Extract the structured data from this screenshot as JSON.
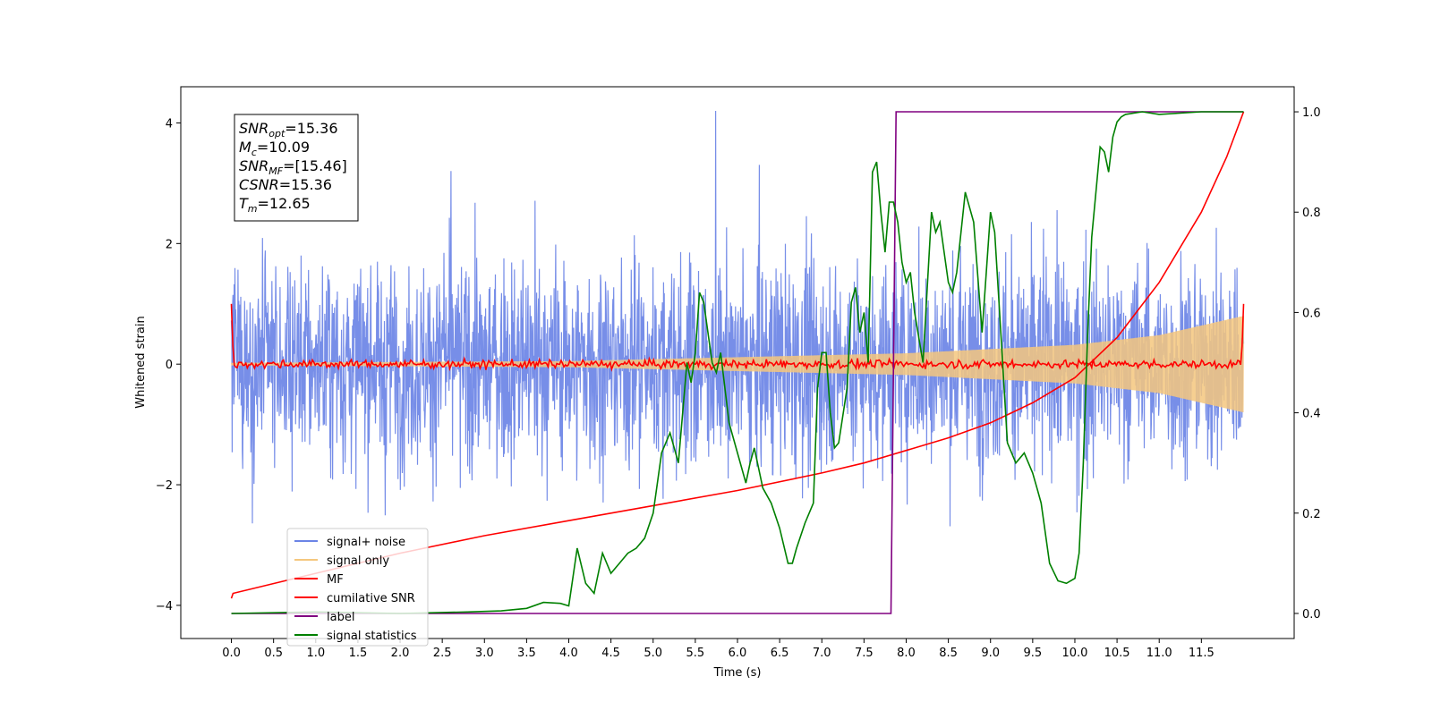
{
  "chart_data": {
    "type": "line",
    "xlabel": "Time (s)",
    "ylabel": "Whitened strain",
    "xlim": [
      -0.6,
      12.6
    ],
    "ylim": [
      -4.55,
      4.6
    ],
    "y2lim": [
      -0.05,
      1.05
    ],
    "xticks": [
      0.0,
      0.5,
      1.0,
      1.5,
      2.0,
      2.5,
      3.0,
      3.5,
      4.0,
      4.5,
      5.0,
      5.5,
      6.0,
      6.5,
      7.0,
      7.5,
      8.0,
      8.5,
      9.0,
      9.5,
      10.0,
      10.5,
      11.0,
      11.5
    ],
    "xtick_labels": [
      "0.0",
      "0.5",
      "1.0",
      "1.5",
      "2.0",
      "2.5",
      "3.0",
      "3.5",
      "4.0",
      "4.5",
      "5.0",
      "5.5",
      "6.0",
      "6.5",
      "7.0",
      "7.5",
      "8.0",
      "8.5",
      "9.0",
      "9.5",
      "10.0",
      "10.5",
      "11.0",
      "11.5"
    ],
    "yticks": [
      -4,
      -2,
      0,
      2,
      4
    ],
    "ytick_labels": [
      "−4",
      "−2",
      "0",
      "2",
      "4"
    ],
    "y2ticks": [
      0.0,
      0.2,
      0.4,
      0.6,
      0.8,
      1.0
    ],
    "y2tick_labels": [
      "0.0",
      "0.2",
      "0.4",
      "0.6",
      "0.8",
      "1.0"
    ],
    "grid": false,
    "legend_position": "lower-left",
    "info_box": {
      "lines": [
        {
          "base": "SNR",
          "sub": "opt",
          "value": "=15.36"
        },
        {
          "base": "M",
          "sub": "c",
          "value": "=10.09"
        },
        {
          "base": "SNR",
          "sub": "MF",
          "value": "=[15.46]"
        },
        {
          "base": "CSNR",
          "sub": "",
          "value": "=15.36"
        },
        {
          "base": "T",
          "sub": "m",
          "value": "=12.65"
        }
      ]
    },
    "series": [
      {
        "name": "signal+ noise",
        "color": "#6b84e6",
        "axis": "left",
        "kind": "noise",
        "x_range": [
          0.0,
          12.0
        ],
        "amplitude_typical": 1.2,
        "amplitude_max": 4.2
      },
      {
        "name": "signal only",
        "color": "#f5c77e",
        "axis": "left",
        "kind": "chirp",
        "x_range": [
          0.0,
          12.0
        ],
        "envelope": [
          [
            0.0,
            0.02
          ],
          [
            4.0,
            0.05
          ],
          [
            8.0,
            0.18
          ],
          [
            10.0,
            0.32
          ],
          [
            11.0,
            0.48
          ],
          [
            12.0,
            0.8
          ]
        ]
      },
      {
        "name": "MF",
        "color": "#ff0000",
        "axis": "left",
        "kind": "matched-filter",
        "x_range": [
          0.0,
          12.0
        ],
        "edges": [
          [
            0.0,
            1.0
          ],
          [
            12.0,
            1.0
          ]
        ],
        "noise_amplitude": 0.08
      },
      {
        "name": "cumilative SNR",
        "color": "#ff0000",
        "axis": "right",
        "x": [
          0.0,
          0.02,
          1.0,
          2.0,
          3.0,
          4.0,
          5.0,
          6.0,
          7.0,
          7.5,
          8.0,
          8.5,
          9.0,
          9.5,
          10.0,
          10.5,
          11.0,
          11.5,
          11.8,
          12.0
        ],
        "values": [
          0.03,
          0.04,
          0.08,
          0.12,
          0.155,
          0.185,
          0.215,
          0.245,
          0.28,
          0.3,
          0.325,
          0.35,
          0.38,
          0.42,
          0.47,
          0.55,
          0.66,
          0.8,
          0.91,
          1.0
        ]
      },
      {
        "name": "label",
        "color": "#800080",
        "axis": "right",
        "x": [
          0.0,
          7.82,
          7.82,
          7.88,
          7.88,
          12.0
        ],
        "values": [
          0.0,
          0.0,
          0.0,
          1.0,
          1.0,
          1.0
        ]
      },
      {
        "name": "signal statistics",
        "color": "#008000",
        "axis": "right",
        "x": [
          0.0,
          1.0,
          2.0,
          2.8,
          3.2,
          3.5,
          3.7,
          3.9,
          4.0,
          4.1,
          4.2,
          4.3,
          4.4,
          4.5,
          4.6,
          4.7,
          4.8,
          4.9,
          5.0,
          5.1,
          5.2,
          5.3,
          5.4,
          5.45,
          5.5,
          5.55,
          5.6,
          5.7,
          5.75,
          5.8,
          5.9,
          6.0,
          6.1,
          6.15,
          6.2,
          6.3,
          6.4,
          6.5,
          6.6,
          6.65,
          6.7,
          6.8,
          6.9,
          6.95,
          7.0,
          7.05,
          7.1,
          7.15,
          7.2,
          7.3,
          7.35,
          7.4,
          7.45,
          7.5,
          7.55,
          7.6,
          7.65,
          7.7,
          7.75,
          7.8,
          7.85,
          7.9,
          7.95,
          8.0,
          8.05,
          8.1,
          8.2,
          8.3,
          8.35,
          8.4,
          8.5,
          8.55,
          8.6,
          8.7,
          8.8,
          8.9,
          9.0,
          9.05,
          9.1,
          9.2,
          9.3,
          9.4,
          9.5,
          9.55,
          9.6,
          9.7,
          9.8,
          9.9,
          10.0,
          10.05,
          10.1,
          10.15,
          10.2,
          10.3,
          10.35,
          10.4,
          10.45,
          10.5,
          10.55,
          10.6,
          10.8,
          11.0,
          11.5,
          12.0
        ],
        "values": [
          0.0,
          0.003,
          0.0,
          0.003,
          0.005,
          0.01,
          0.022,
          0.02,
          0.015,
          0.13,
          0.06,
          0.04,
          0.12,
          0.08,
          0.1,
          0.12,
          0.13,
          0.15,
          0.2,
          0.32,
          0.36,
          0.3,
          0.5,
          0.46,
          0.52,
          0.64,
          0.62,
          0.5,
          0.48,
          0.52,
          0.38,
          0.32,
          0.26,
          0.3,
          0.33,
          0.25,
          0.22,
          0.17,
          0.1,
          0.1,
          0.13,
          0.18,
          0.22,
          0.45,
          0.52,
          0.52,
          0.4,
          0.33,
          0.34,
          0.45,
          0.62,
          0.65,
          0.56,
          0.6,
          0.5,
          0.88,
          0.9,
          0.8,
          0.72,
          0.82,
          0.82,
          0.78,
          0.7,
          0.66,
          0.68,
          0.6,
          0.5,
          0.8,
          0.76,
          0.78,
          0.66,
          0.64,
          0.68,
          0.84,
          0.78,
          0.56,
          0.8,
          0.76,
          0.62,
          0.34,
          0.3,
          0.32,
          0.28,
          0.25,
          0.22,
          0.1,
          0.065,
          0.06,
          0.07,
          0.12,
          0.3,
          0.55,
          0.75,
          0.93,
          0.92,
          0.88,
          0.95,
          0.98,
          0.99,
          0.995,
          1.0,
          0.995,
          1.0,
          1.0
        ]
      }
    ]
  }
}
